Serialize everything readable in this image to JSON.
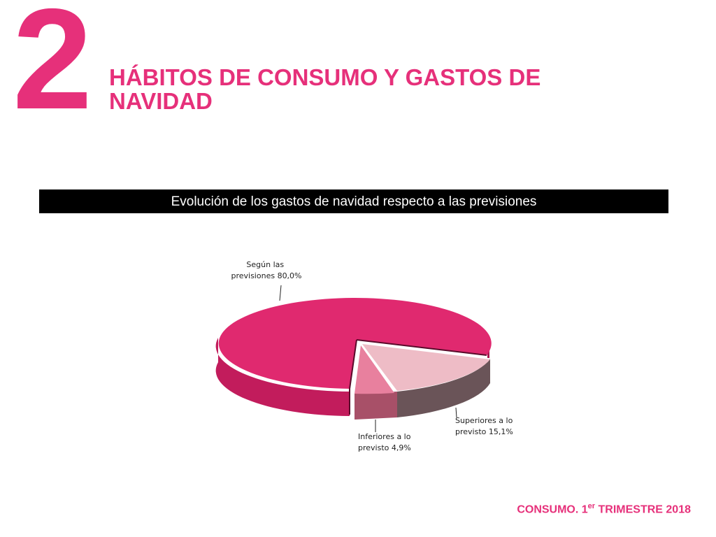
{
  "header": {
    "section_number": "2",
    "title": "HÁBITOS DE CONSUMO Y GASTOS DE NAVIDAD"
  },
  "chart_data": {
    "type": "pie",
    "title": "Evolución de los gastos de navidad respecto a las previsiones",
    "slices": [
      {
        "name": "Según las previsiones",
        "value": 80.0,
        "label_line1": "Según las",
        "label_line2": "previsiones 80,0%",
        "color": "#e0296f"
      },
      {
        "name": "Superiores a lo previsto",
        "value": 15.1,
        "label_line1": "Superiores a lo",
        "label_line2": "previsto 15,1%",
        "color": "#eebcc6"
      },
      {
        "name": "Inferiores a lo previsto",
        "value": 4.9,
        "label_line1": "Inferiores a lo",
        "label_line2": "previsto 4,9%",
        "color": "#e8809e"
      }
    ]
  },
  "footer": {
    "prefix": "CONSUMO. 1",
    "superscript": "er",
    "suffix": " TRIMESTRE 2018"
  }
}
